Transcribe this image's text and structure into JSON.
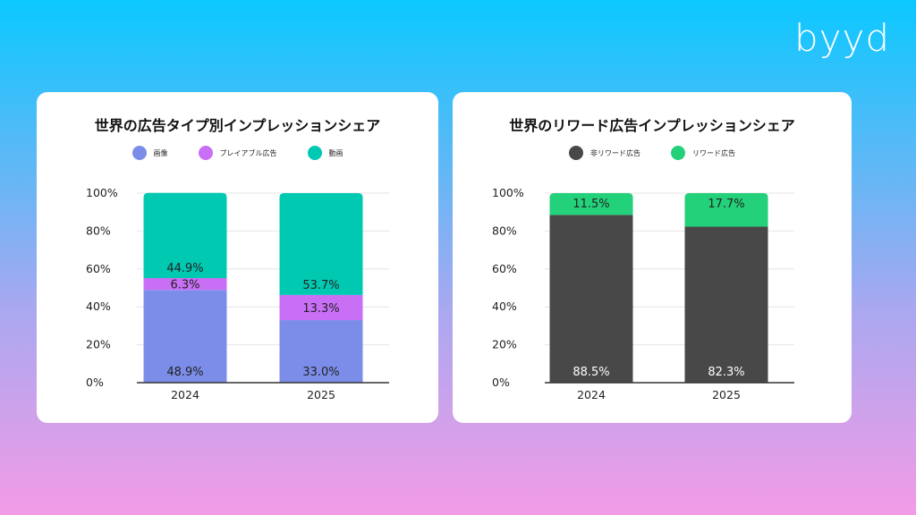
{
  "brand": "byyd",
  "chart_data": [
    {
      "type": "bar",
      "stacked": true,
      "title": "世界の広告タイプ別インプレッションシェア",
      "categories": [
        "2024",
        "2025"
      ],
      "y_ticks": [
        "0%",
        "20%",
        "40%",
        "60%",
        "80%",
        "100%"
      ],
      "ylim": [
        0,
        100
      ],
      "legend_position": "top",
      "series": [
        {
          "name": "画像",
          "color": "#7b8de9",
          "label_color": "#222222",
          "values": [
            48.9,
            33.0
          ],
          "labels": [
            "48.9%",
            "33.0%"
          ]
        },
        {
          "name": "プレイアブル広告",
          "color": "#c86ff6",
          "label_color": "#222222",
          "values": [
            6.3,
            13.3
          ],
          "labels": [
            "6.3%",
            "13.3%"
          ]
        },
        {
          "name": "動画",
          "color": "#00c9b2",
          "label_color": "#222222",
          "values": [
            44.9,
            53.7
          ],
          "labels": [
            "44.9%",
            "53.7%"
          ]
        }
      ]
    },
    {
      "type": "bar",
      "stacked": true,
      "title": "世界のリワード広告インプレッションシェア",
      "categories": [
        "2024",
        "2025"
      ],
      "y_ticks": [
        "0%",
        "20%",
        "40%",
        "60%",
        "80%",
        "100%"
      ],
      "ylim": [
        0,
        100
      ],
      "legend_position": "top",
      "series": [
        {
          "name": "非リワード広告",
          "color": "#484848",
          "label_color": "#ffffff",
          "values": [
            88.5,
            82.3
          ],
          "labels": [
            "88.5%",
            "82.3%"
          ]
        },
        {
          "name": "リワード広告",
          "color": "#23d17a",
          "label_color": "#222222",
          "values": [
            11.5,
            17.7
          ],
          "labels": [
            "11.5%",
            "17.7%"
          ]
        }
      ]
    }
  ]
}
